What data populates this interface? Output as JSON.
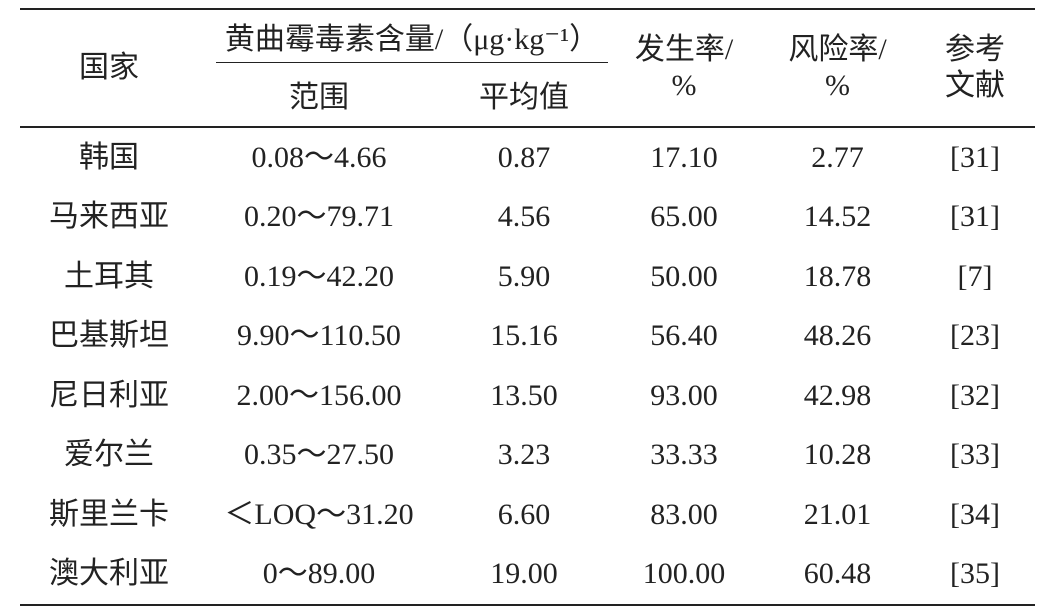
{
  "table": {
    "header": {
      "country": "国家",
      "group": "黄曲霉毒素含量/（μg·kg⁻¹）",
      "range": "范围",
      "mean": "平均值",
      "incidence": [
        "发生率/",
        "%"
      ],
      "risk": [
        "风险率/",
        "%"
      ],
      "reference": [
        "参考",
        "文献"
      ]
    },
    "rows": [
      [
        "韩国",
        "0.08～4.66",
        "0.87",
        "17.10",
        "2.77",
        "[31]"
      ],
      [
        "马来西亚",
        "0.20～79.71",
        "4.56",
        "65.00",
        "14.52",
        "[31]"
      ],
      [
        "土耳其",
        "0.19～42.20",
        "5.90",
        "50.00",
        "18.78",
        "[7]"
      ],
      [
        "巴基斯坦",
        "9.90～110.50",
        "15.16",
        "56.40",
        "48.26",
        "[23]"
      ],
      [
        "尼日利亚",
        "2.00～156.00",
        "13.50",
        "93.00",
        "42.98",
        "[32]"
      ],
      [
        "爱尔兰",
        "0.35～27.50",
        "3.23",
        "33.33",
        "10.28",
        "[33]"
      ],
      [
        "斯里兰卡",
        "＜LOQ～31.20",
        "6.60",
        "83.00",
        "21.01",
        "[34]"
      ],
      [
        "澳大利亚",
        "0～89.00",
        "19.00",
        "100.00",
        "60.48",
        "[35]"
      ]
    ]
  }
}
